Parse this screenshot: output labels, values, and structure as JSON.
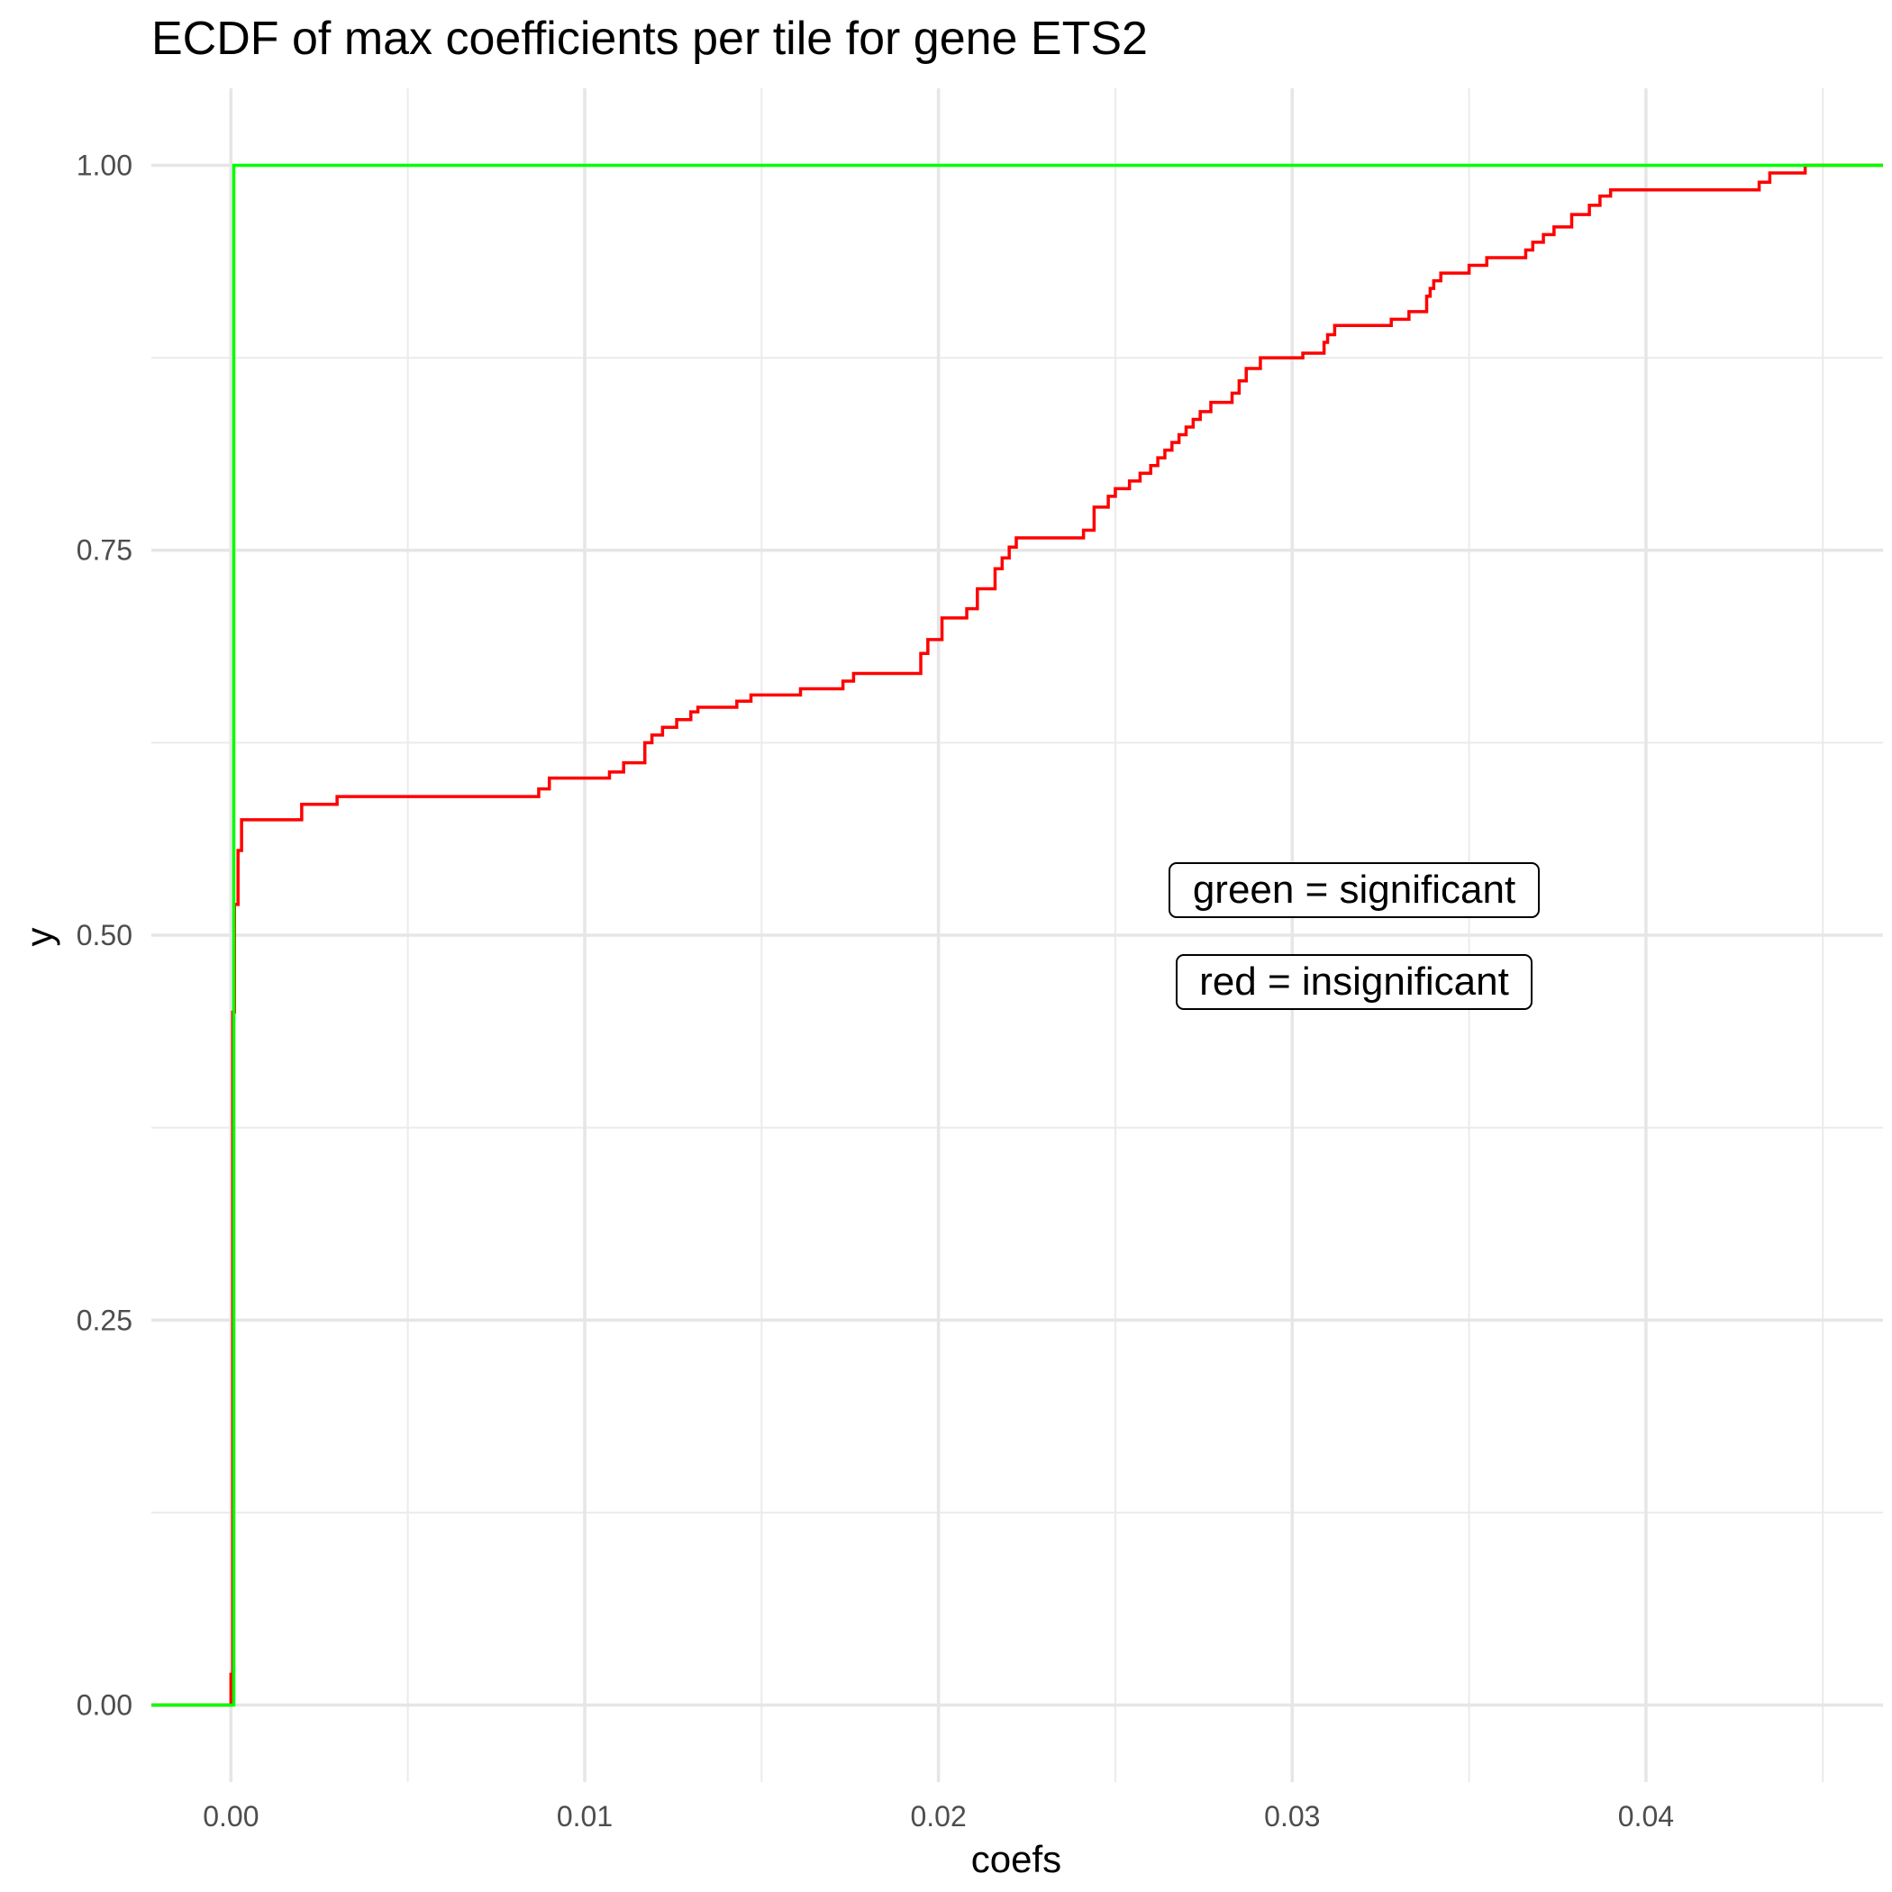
{
  "chart_data": {
    "type": "line",
    "title": "ECDF of max coefficients per tile for gene ETS2",
    "xlabel": "coefs",
    "ylabel": "y",
    "xlim": [
      -0.00225,
      0.0467
    ],
    "ylim": [
      -0.05,
      1.05
    ],
    "x_ticks": [
      0.0,
      0.01,
      0.02,
      0.03,
      0.04
    ],
    "x_tick_labels": [
      "0.00",
      "0.01",
      "0.02",
      "0.03",
      "0.04"
    ],
    "y_ticks": [
      0.0,
      0.25,
      0.5,
      0.75,
      1.0
    ],
    "y_tick_labels": [
      "0.00",
      "0.25",
      "0.50",
      "0.75",
      "1.00"
    ],
    "grid": true,
    "annotations": [
      "green = significant",
      "red = insignificant"
    ],
    "series": [
      {
        "color": "#ff0000",
        "step": true,
        "points": [
          [
            -0.00225,
            0.0
          ],
          [
            0.0,
            0.02
          ],
          [
            5e-05,
            0.45
          ],
          [
            0.0001,
            0.52
          ],
          [
            0.0002,
            0.555
          ],
          [
            0.0003,
            0.575
          ],
          [
            0.002,
            0.585
          ],
          [
            0.003,
            0.59
          ],
          [
            0.0087,
            0.595
          ],
          [
            0.009,
            0.602
          ],
          [
            0.0107,
            0.606
          ],
          [
            0.0111,
            0.612
          ],
          [
            0.0117,
            0.625
          ],
          [
            0.0119,
            0.63
          ],
          [
            0.0122,
            0.635
          ],
          [
            0.0126,
            0.64
          ],
          [
            0.013,
            0.645
          ],
          [
            0.0132,
            0.648
          ],
          [
            0.0143,
            0.652
          ],
          [
            0.0147,
            0.656
          ],
          [
            0.0161,
            0.66
          ],
          [
            0.0173,
            0.665
          ],
          [
            0.0176,
            0.67
          ],
          [
            0.0195,
            0.683
          ],
          [
            0.0197,
            0.692
          ],
          [
            0.0201,
            0.706
          ],
          [
            0.0208,
            0.712
          ],
          [
            0.0211,
            0.725
          ],
          [
            0.0216,
            0.738
          ],
          [
            0.0218,
            0.745
          ],
          [
            0.022,
            0.752
          ],
          [
            0.0222,
            0.758
          ],
          [
            0.0241,
            0.763
          ],
          [
            0.0244,
            0.778
          ],
          [
            0.0248,
            0.785
          ],
          [
            0.025,
            0.79
          ],
          [
            0.0254,
            0.795
          ],
          [
            0.0257,
            0.8
          ],
          [
            0.026,
            0.805
          ],
          [
            0.0262,
            0.81
          ],
          [
            0.0264,
            0.815
          ],
          [
            0.0266,
            0.82
          ],
          [
            0.0268,
            0.825
          ],
          [
            0.027,
            0.83
          ],
          [
            0.0272,
            0.835
          ],
          [
            0.0274,
            0.84
          ],
          [
            0.0277,
            0.846
          ],
          [
            0.0283,
            0.852
          ],
          [
            0.0285,
            0.86
          ],
          [
            0.0287,
            0.868
          ],
          [
            0.0291,
            0.875
          ],
          [
            0.0303,
            0.878
          ],
          [
            0.0309,
            0.885
          ],
          [
            0.031,
            0.89
          ],
          [
            0.0312,
            0.896
          ],
          [
            0.0328,
            0.9
          ],
          [
            0.0333,
            0.905
          ],
          [
            0.0338,
            0.915
          ],
          [
            0.0339,
            0.92
          ],
          [
            0.034,
            0.925
          ],
          [
            0.0342,
            0.93
          ],
          [
            0.035,
            0.935
          ],
          [
            0.0355,
            0.94
          ],
          [
            0.0366,
            0.945
          ],
          [
            0.0368,
            0.95
          ],
          [
            0.0371,
            0.955
          ],
          [
            0.0374,
            0.96
          ],
          [
            0.0379,
            0.968
          ],
          [
            0.0384,
            0.974
          ],
          [
            0.0387,
            0.98
          ],
          [
            0.039,
            0.984
          ],
          [
            0.0432,
            0.989
          ],
          [
            0.0435,
            0.995
          ],
          [
            0.0445,
            1.0
          ],
          [
            0.0467,
            1.0
          ]
        ]
      },
      {
        "color": "#00ff00",
        "step": true,
        "points": [
          [
            -0.00225,
            0.0
          ],
          [
            8e-05,
            0.0
          ],
          [
            8e-05,
            1.0
          ],
          [
            0.0467,
            1.0
          ]
        ]
      }
    ]
  }
}
